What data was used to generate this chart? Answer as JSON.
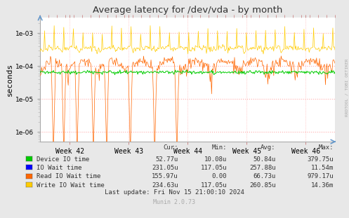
{
  "title": "Average latency for /dev/vda - by month",
  "ylabel": "seconds",
  "background_color": "#e8e8e8",
  "plot_bg_color": "#ffffff",
  "grid_color": "#ffaaaa",
  "x_labels": [
    "Week 42",
    "Week 43",
    "Week 44",
    "Week 45",
    "Week 46"
  ],
  "legend": [
    {
      "label": "Device IO time",
      "color": "#00cc00"
    },
    {
      "label": "IO Wait time",
      "color": "#0000ff"
    },
    {
      "label": "Read IO Wait time",
      "color": "#ff6600"
    },
    {
      "label": "Write IO Wait time",
      "color": "#ffcc00"
    }
  ],
  "stats_header": [
    "Cur:",
    "Min:",
    "Avg:",
    "Max:"
  ],
  "stats": [
    [
      "52.77u",
      "10.08u",
      "50.84u",
      "379.75u"
    ],
    [
      "231.05u",
      "117.05u",
      "257.88u",
      "11.54m"
    ],
    [
      "155.97u",
      "0.00",
      "66.73u",
      "979.17u"
    ],
    [
      "234.63u",
      "117.05u",
      "260.85u",
      "14.36m"
    ]
  ],
  "last_update": "Last update: Fri Nov 15 21:00:10 2024",
  "munin_version": "Munin 2.0.73",
  "rrdtool_label": "RRDTOOL / TOBI OETIKER",
  "green_line_val": 6.5e-05,
  "write_io_base": 0.00035,
  "read_io_base": 6.5e-05
}
